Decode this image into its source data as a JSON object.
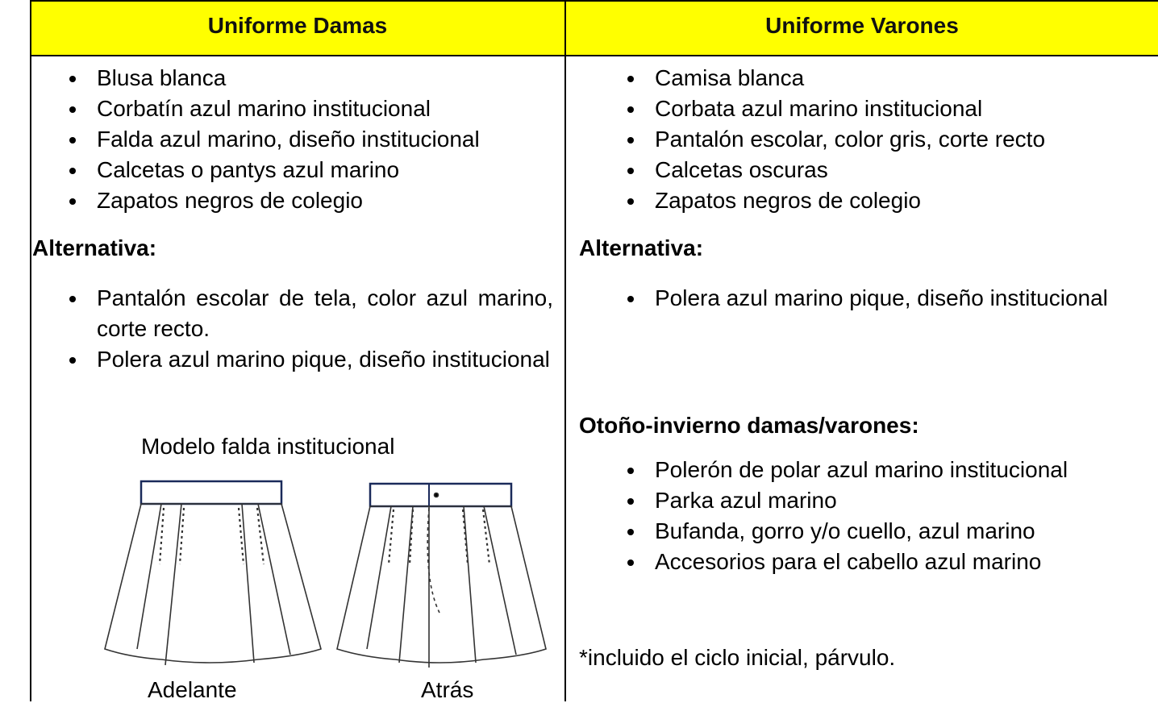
{
  "header": {
    "left": "Uniforme Damas",
    "right": "Uniforme Varones"
  },
  "left": {
    "items": [
      "Blusa blanca",
      "Corbatín azul marino institucional",
      "Falda azul marino, diseño institucional",
      "Calcetas o pantys azul marino",
      "Zapatos negros de colegio"
    ],
    "alt_heading": "Alternativa:",
    "alt_items": [
      "Pantalón escolar de tela, color azul marino, corte recto.",
      "Polera azul marino pique, diseño institucional"
    ],
    "figure": {
      "caption": "Modelo falda institucional",
      "labels": [
        "Adelante",
        "Atrás"
      ]
    }
  },
  "right": {
    "items": [
      "Camisa blanca",
      "Corbata azul marino institucional",
      "Pantalón escolar, color gris, corte recto",
      "Calcetas oscuras",
      "Zapatos negros de colegio"
    ],
    "alt_heading": "Alternativa:",
    "alt_items": [
      "Polera azul marino pique, diseño institucional"
    ],
    "season_heading": "Otoño-invierno damas/varones:",
    "season_items": [
      "Polerón de polar azul marino institucional",
      "Parka azul marino",
      "Bufanda, gorro y/o cuello, azul marino",
      "Accesorios para el cabello azul marino"
    ],
    "note": "*incluido el ciclo inicial, párvulo."
  }
}
